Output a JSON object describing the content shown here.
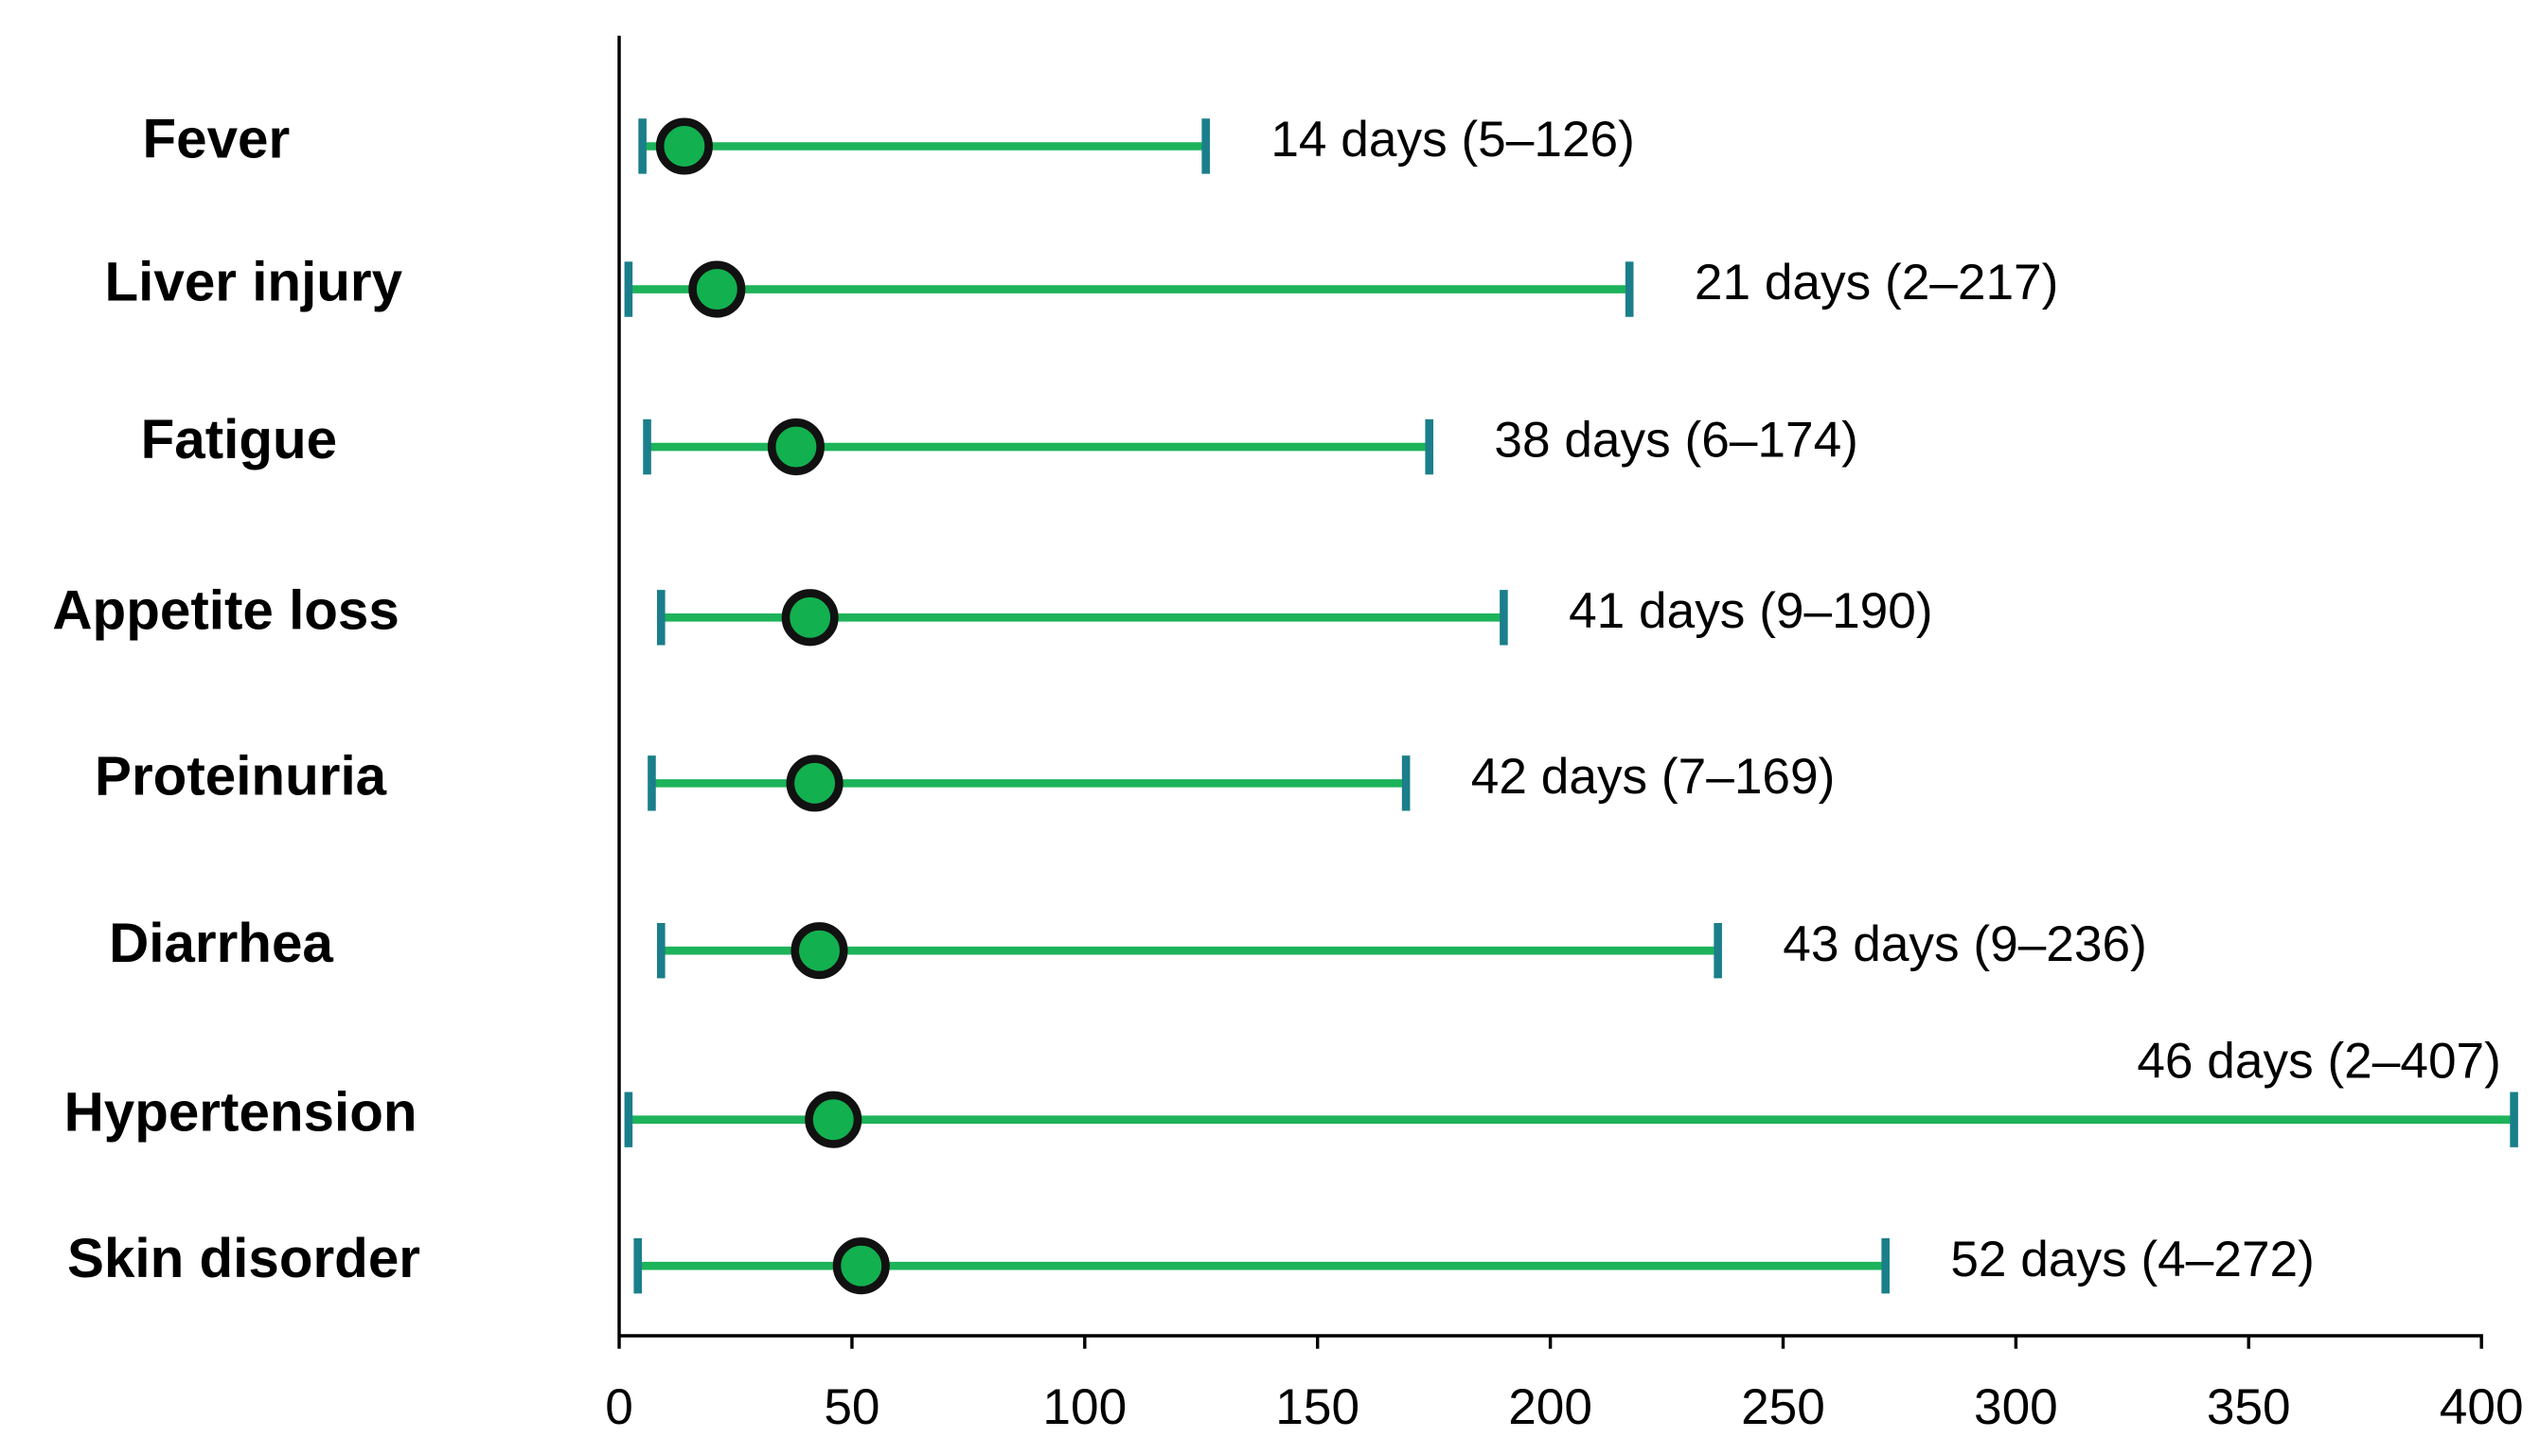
{
  "chart_data": {
    "type": "dot-range",
    "categories": [
      "Fever",
      "Liver  injury",
      "Fatigue",
      "Appetite  loss",
      "Proteinuria",
      "Diarrhea",
      "Hypertension",
      "Skin disorder"
    ],
    "median": [
      14,
      21,
      38,
      41,
      42,
      43,
      46,
      52
    ],
    "min": [
      5,
      2,
      6,
      9,
      7,
      9,
      2,
      4
    ],
    "max": [
      126,
      217,
      174,
      190,
      169,
      236,
      407,
      272
    ],
    "value_labels": [
      "14 days (5–126)",
      "21 days (2–217)",
      "38 days (6–174)",
      "41 days (9–190)",
      "42 days (7–169)",
      "43 days (9–236)",
      "46 days (2–407)",
      "52 days (4–272)"
    ],
    "xlim": [
      0,
      400
    ],
    "xticks": [
      0,
      50,
      100,
      150,
      200,
      250,
      300,
      350,
      400
    ],
    "line_color": "#1db35a",
    "cap_color": "#1a7f8a",
    "dot_color": "#12b04f"
  }
}
